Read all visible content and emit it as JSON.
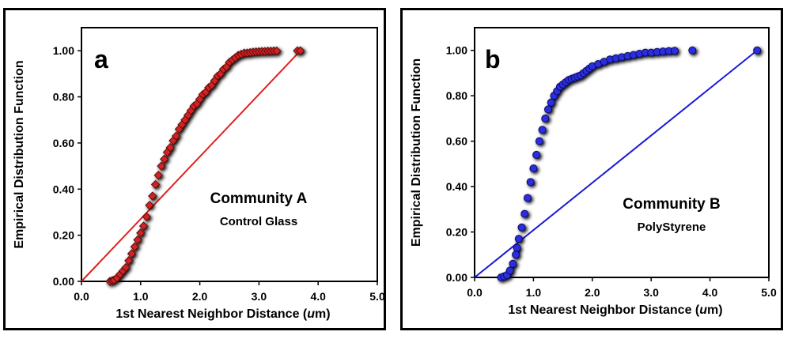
{
  "chart_data": [
    {
      "type": "scatter",
      "panel_label": "a",
      "xlabel": "1st Nearest Neighbor Distance (um)",
      "ylabel": "Empirical Distribution Function",
      "xlim": [
        0,
        5
      ],
      "ylim": [
        0,
        1.1
      ],
      "xticks": [
        "0.0",
        "1.0",
        "2.0",
        "3.0",
        "4.0",
        "5.0"
      ],
      "yticks": [
        "0.00",
        "0.20",
        "0.40",
        "0.60",
        "0.80",
        "1.00"
      ],
      "annotation_title": "Community A",
      "annotation_subtitle": "Control Glass",
      "marker": "diamond",
      "color": "#d42222",
      "reference_line": {
        "x": [
          0,
          3.7
        ],
        "y": [
          0,
          1.0
        ],
        "color": "#e02020"
      },
      "series": [
        {
          "name": "Community A",
          "x": [
            0.48,
            0.52,
            0.55,
            0.6,
            0.65,
            0.7,
            0.75,
            0.8,
            0.85,
            0.9,
            0.95,
            1.0,
            1.05,
            1.1,
            1.15,
            1.2,
            1.25,
            1.3,
            1.35,
            1.4,
            1.45,
            1.5,
            1.55,
            1.6,
            1.65,
            1.7,
            1.75,
            1.8,
            1.85,
            1.9,
            1.95,
            2.0,
            2.05,
            2.1,
            2.15,
            2.2,
            2.25,
            2.3,
            2.35,
            2.4,
            2.45,
            2.5,
            2.55,
            2.6,
            2.65,
            2.7,
            2.75,
            2.8,
            2.85,
            2.9,
            2.95,
            3.0,
            3.05,
            3.1,
            3.15,
            3.2,
            3.25,
            3.3,
            3.65,
            3.7
          ],
          "y": [
            0.0,
            0.003,
            0.006,
            0.015,
            0.03,
            0.045,
            0.06,
            0.09,
            0.12,
            0.15,
            0.18,
            0.21,
            0.24,
            0.28,
            0.33,
            0.37,
            0.42,
            0.46,
            0.5,
            0.53,
            0.56,
            0.58,
            0.61,
            0.63,
            0.66,
            0.68,
            0.7,
            0.72,
            0.74,
            0.76,
            0.77,
            0.79,
            0.81,
            0.82,
            0.84,
            0.85,
            0.87,
            0.89,
            0.9,
            0.92,
            0.93,
            0.95,
            0.96,
            0.97,
            0.98,
            0.985,
            0.99,
            0.99,
            0.992,
            0.994,
            0.995,
            0.996,
            0.997,
            0.997,
            0.998,
            0.998,
            0.999,
            0.999,
            1.0,
            1.0
          ]
        }
      ]
    },
    {
      "type": "scatter",
      "panel_label": "b",
      "xlabel": "1st Nearest Neighbor Distance (um)",
      "ylabel": "Empirical Distribution Function",
      "xlim": [
        0,
        5
      ],
      "ylim": [
        0,
        1.1
      ],
      "xticks": [
        "0.0",
        "1.0",
        "2.0",
        "3.0",
        "4.0",
        "5.0"
      ],
      "yticks": [
        "0.00",
        "0.20",
        "0.40",
        "0.60",
        "0.80",
        "1.00"
      ],
      "annotation_title": "Community B",
      "annotation_subtitle": "PolyStyrene",
      "marker": "circle",
      "color": "#2a2ee0",
      "reference_line": {
        "x": [
          0,
          4.8
        ],
        "y": [
          0,
          1.0
        ],
        "color": "#1a1ad8"
      },
      "series": [
        {
          "name": "Community B",
          "x": [
            0.45,
            0.5,
            0.55,
            0.6,
            0.65,
            0.7,
            0.72,
            0.75,
            0.8,
            0.85,
            0.9,
            0.95,
            1.0,
            1.05,
            1.1,
            1.15,
            1.2,
            1.25,
            1.3,
            1.35,
            1.4,
            1.45,
            1.5,
            1.55,
            1.6,
            1.65,
            1.7,
            1.75,
            1.8,
            1.85,
            1.9,
            1.95,
            2.0,
            2.1,
            2.2,
            2.3,
            2.4,
            2.5,
            2.6,
            2.7,
            2.8,
            2.9,
            3.0,
            3.1,
            3.2,
            3.3,
            3.4,
            3.7,
            4.8
          ],
          "y": [
            0.0,
            0.005,
            0.01,
            0.03,
            0.06,
            0.1,
            0.13,
            0.17,
            0.22,
            0.28,
            0.35,
            0.42,
            0.48,
            0.54,
            0.6,
            0.65,
            0.7,
            0.74,
            0.77,
            0.8,
            0.82,
            0.84,
            0.85,
            0.86,
            0.87,
            0.875,
            0.88,
            0.885,
            0.89,
            0.9,
            0.91,
            0.92,
            0.93,
            0.94,
            0.95,
            0.96,
            0.965,
            0.97,
            0.975,
            0.98,
            0.985,
            0.99,
            0.99,
            0.993,
            0.995,
            0.997,
            0.998,
            1.0,
            1.0
          ]
        }
      ]
    }
  ]
}
